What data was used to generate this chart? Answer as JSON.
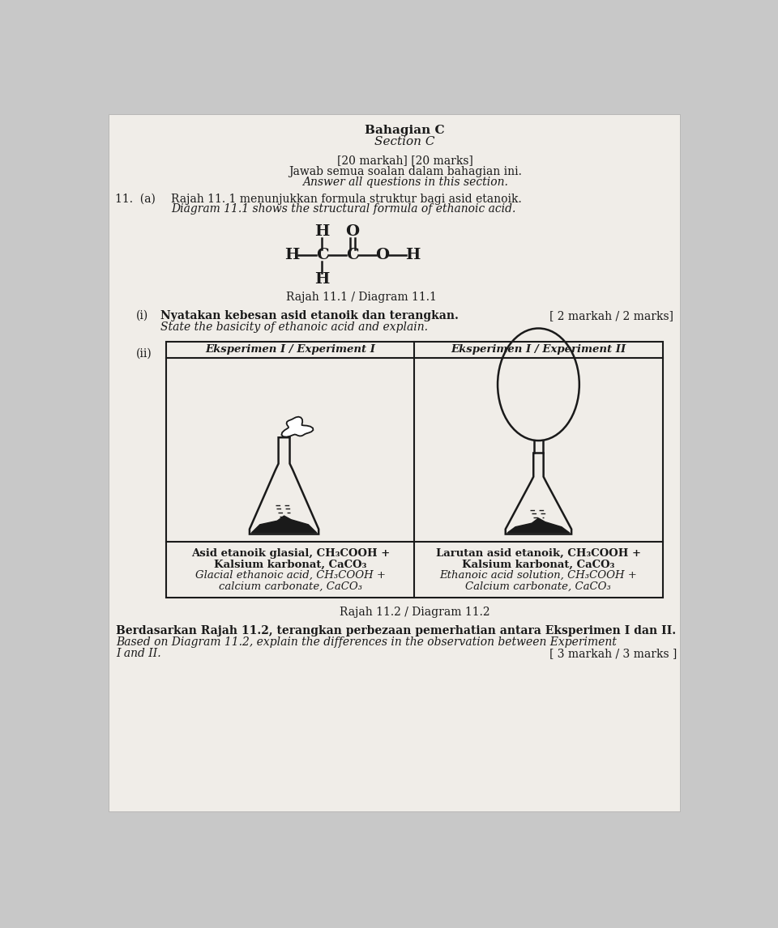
{
  "bg_color": "#c8c8c8",
  "paper_color": "#f0ede8",
  "title1": "Bahagian C",
  "title2": "Section C",
  "subtitle1": "[20 markah] [20 marks]",
  "subtitle2": "Jawab semua soalan dalam bahagian ini.",
  "subtitle3": "Answer all questions in this section.",
  "q11_num": "11.  (a)",
  "q11_malay": "Rajah 11. 1 menunjukkan formula struktur bagi asid etanoik.",
  "q11_eng": "Diagram 11.1 shows the structural formula of ethanoic acid.",
  "diagram_label": "Rajah 11.1 / Diagram 11.1",
  "qi_num": "(i)",
  "qi_malay": "Nyatakan kebesan asid etanoik dan terangkan.",
  "qi_eng": "State the basicity of ethanoic acid and explain.",
  "qi_marks": "[ 2 markah / 2 marks]",
  "qii_num": "(ii)",
  "exp1_header": "Eksperimen I / Experiment I",
  "exp2_header": "Eksperimen I / Experiment II",
  "exp1_label1": "Asid etanoik glasial, CH₃COOH +",
  "exp1_label2": "Kalsium karbonat, CaCO₃",
  "exp1_label3": "Glacial ethanoic acid, CH₃COOH +",
  "exp1_label4": "calcium carbonate, CaCO₃",
  "exp2_label1": "Larutan asid etanoik, CH₃COOH +",
  "exp2_label2": "Kalsium karbonat, CaCO₃",
  "exp2_label3": "Ethanoic acid solution, CH₃COOH +",
  "exp2_label4": "Calcium carbonate, CaCO₃",
  "diagram12_label": "Rajah 11.2 / Diagram 11.2",
  "q_below1": "Berdasarkan Rajah 11.2, terangkan perbezaan pemerhatian antara Eksperimen I dan II.",
  "q_below2": "Based on Diagram 11.2, explain the differences in the observation between Experiment",
  "q_below3": "I and II.",
  "q_below_marks": "[ 3 markah / 3 marks ]",
  "text_color": "#1a1a1a",
  "line_color": "#1a1a1a"
}
